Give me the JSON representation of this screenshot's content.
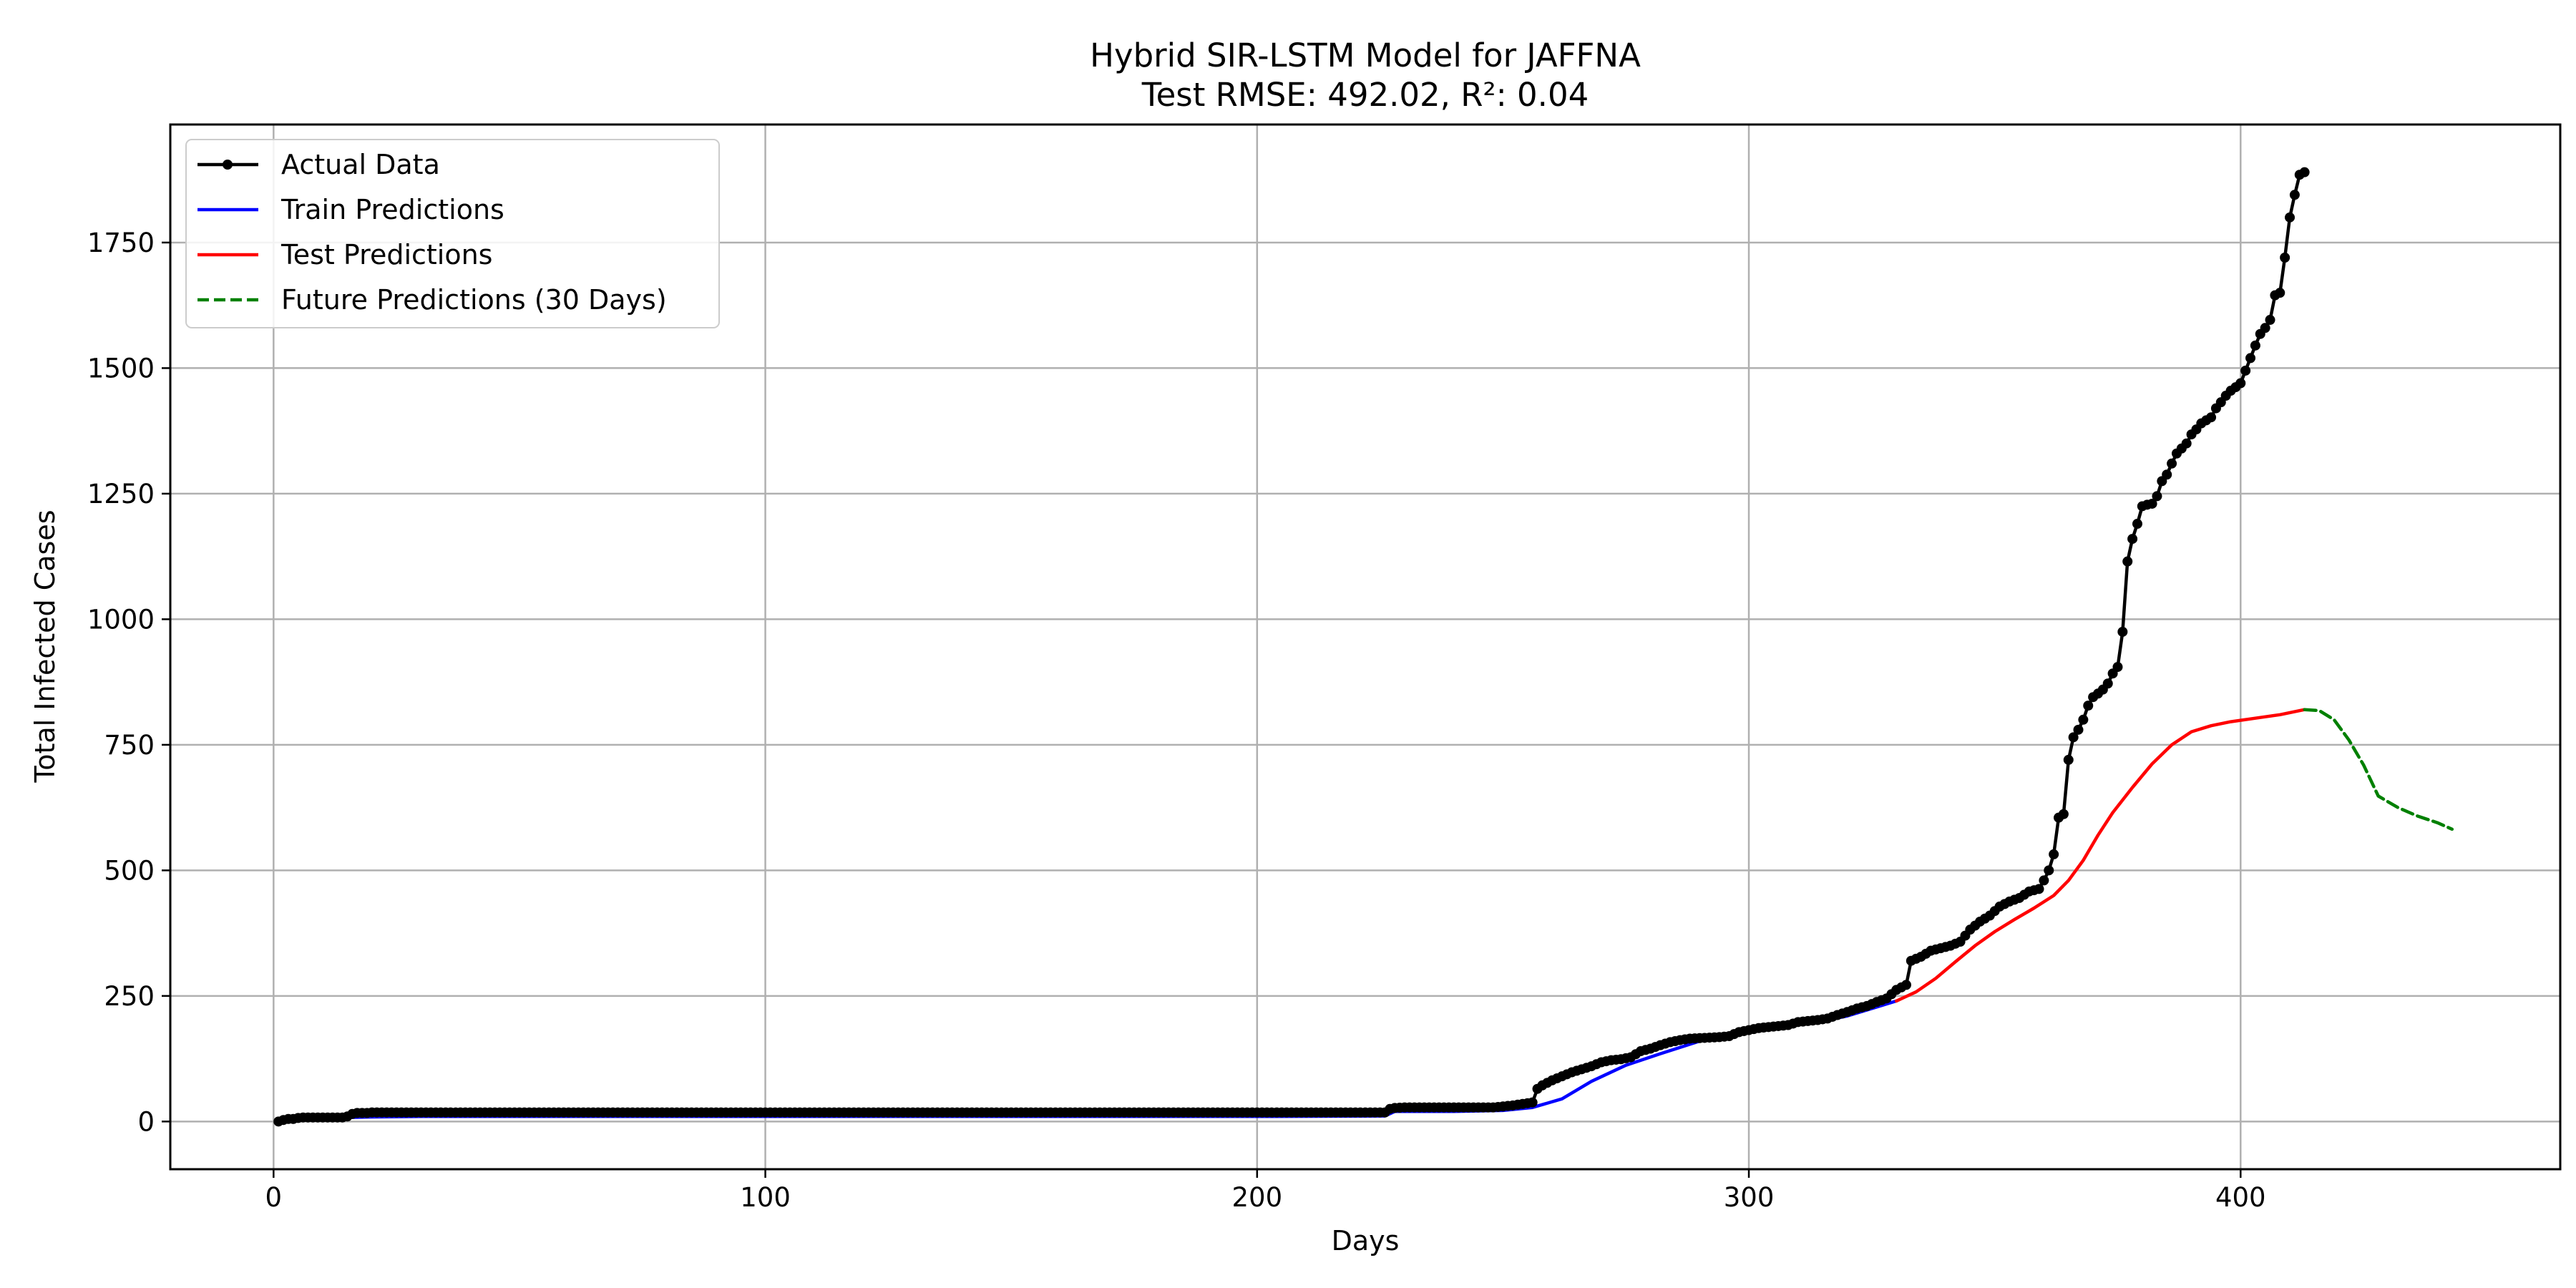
{
  "chart_data": {
    "type": "line",
    "title": "Hybrid SIR-LSTM Model for JAFFNA",
    "subtitle": "Test RMSE: 492.02, R²: 0.04",
    "xlabel": "Days",
    "ylabel": "Total Infected Cases",
    "xlim": [
      -21,
      465
    ],
    "ylim": [
      -95,
      1985
    ],
    "xticks": [
      0,
      100,
      200,
      300,
      400
    ],
    "yticks": [
      0,
      250,
      500,
      750,
      1000,
      1250,
      1500,
      1750
    ],
    "grid": true,
    "legend_position": "top-left",
    "series": [
      {
        "name": "Actual Data",
        "color": "#000000",
        "style": "solid-marker",
        "points": [
          [
            1,
            0
          ],
          [
            2,
            3
          ],
          [
            3,
            5
          ],
          [
            4,
            5
          ],
          [
            5,
            7
          ],
          [
            6,
            8
          ],
          [
            8,
            8
          ],
          [
            10,
            8
          ],
          [
            12,
            8
          ],
          [
            14,
            8
          ],
          [
            15,
            10
          ],
          [
            16,
            15
          ],
          [
            17,
            17
          ],
          [
            18,
            17
          ],
          [
            19,
            17
          ],
          [
            20,
            18
          ],
          [
            40,
            18
          ],
          [
            60,
            18
          ],
          [
            80,
            18
          ],
          [
            100,
            18
          ],
          [
            120,
            18
          ],
          [
            140,
            18
          ],
          [
            160,
            18
          ],
          [
            180,
            18
          ],
          [
            200,
            18
          ],
          [
            215,
            18
          ],
          [
            226,
            18
          ],
          [
            227,
            25
          ],
          [
            228,
            27
          ],
          [
            230,
            28
          ],
          [
            235,
            28
          ],
          [
            240,
            28
          ],
          [
            245,
            28
          ],
          [
            248,
            28
          ],
          [
            250,
            30
          ],
          [
            252,
            32
          ],
          [
            254,
            35
          ],
          [
            256,
            38
          ],
          [
            257,
            65
          ],
          [
            258,
            72
          ],
          [
            260,
            82
          ],
          [
            262,
            90
          ],
          [
            264,
            98
          ],
          [
            266,
            104
          ],
          [
            268,
            110
          ],
          [
            270,
            118
          ],
          [
            272,
            122
          ],
          [
            274,
            124
          ],
          [
            276,
            128
          ],
          [
            278,
            140
          ],
          [
            280,
            145
          ],
          [
            282,
            152
          ],
          [
            284,
            158
          ],
          [
            286,
            162
          ],
          [
            288,
            165
          ],
          [
            290,
            166
          ],
          [
            292,
            167
          ],
          [
            294,
            168
          ],
          [
            296,
            170
          ],
          [
            298,
            178
          ],
          [
            300,
            182
          ],
          [
            302,
            186
          ],
          [
            304,
            188
          ],
          [
            306,
            190
          ],
          [
            308,
            192
          ],
          [
            310,
            198
          ],
          [
            312,
            200
          ],
          [
            314,
            202
          ],
          [
            316,
            205
          ],
          [
            318,
            212
          ],
          [
            320,
            218
          ],
          [
            322,
            225
          ],
          [
            324,
            230
          ],
          [
            326,
            238
          ],
          [
            328,
            245
          ],
          [
            330,
            262
          ],
          [
            332,
            272
          ],
          [
            333,
            320
          ],
          [
            335,
            328
          ],
          [
            337,
            340
          ],
          [
            339,
            345
          ],
          [
            341,
            350
          ],
          [
            343,
            358
          ],
          [
            345,
            382
          ],
          [
            347,
            398
          ],
          [
            349,
            410
          ],
          [
            351,
            428
          ],
          [
            353,
            438
          ],
          [
            355,
            445
          ],
          [
            357,
            458
          ],
          [
            359,
            463
          ],
          [
            360,
            480
          ],
          [
            361,
            500
          ],
          [
            362,
            532
          ],
          [
            363,
            605
          ],
          [
            364,
            612
          ],
          [
            365,
            720
          ],
          [
            366,
            765
          ],
          [
            367,
            780
          ],
          [
            368,
            800
          ],
          [
            369,
            828
          ],
          [
            370,
            845
          ],
          [
            371,
            852
          ],
          [
            372,
            860
          ],
          [
            373,
            872
          ],
          [
            374,
            892
          ],
          [
            375,
            905
          ],
          [
            376,
            975
          ],
          [
            377,
            1115
          ],
          [
            378,
            1160
          ],
          [
            379,
            1190
          ],
          [
            380,
            1225
          ],
          [
            381,
            1228
          ],
          [
            382,
            1230
          ],
          [
            383,
            1245
          ],
          [
            384,
            1275
          ],
          [
            385,
            1288
          ],
          [
            386,
            1310
          ],
          [
            387,
            1330
          ],
          [
            388,
            1340
          ],
          [
            389,
            1350
          ],
          [
            390,
            1368
          ],
          [
            391,
            1378
          ],
          [
            392,
            1390
          ],
          [
            393,
            1396
          ],
          [
            394,
            1402
          ],
          [
            395,
            1420
          ],
          [
            396,
            1432
          ],
          [
            397,
            1445
          ],
          [
            398,
            1455
          ],
          [
            399,
            1462
          ],
          [
            400,
            1470
          ],
          [
            401,
            1495
          ],
          [
            402,
            1520
          ],
          [
            403,
            1545
          ],
          [
            404,
            1568
          ],
          [
            405,
            1580
          ],
          [
            406,
            1596
          ],
          [
            407,
            1645
          ],
          [
            408,
            1650
          ],
          [
            409,
            1720
          ],
          [
            410,
            1800
          ],
          [
            411,
            1845
          ],
          [
            412,
            1885
          ],
          [
            413,
            1890
          ]
        ]
      },
      {
        "name": "Train Predictions",
        "color": "#0000ff",
        "style": "solid",
        "points": [
          [
            15,
            8
          ],
          [
            20,
            9
          ],
          [
            30,
            10
          ],
          [
            60,
            10
          ],
          [
            100,
            10
          ],
          [
            150,
            10
          ],
          [
            200,
            10
          ],
          [
            226,
            11
          ],
          [
            228,
            20
          ],
          [
            240,
            20
          ],
          [
            250,
            22
          ],
          [
            256,
            28
          ],
          [
            262,
            45
          ],
          [
            268,
            80
          ],
          [
            275,
            112
          ],
          [
            282,
            135
          ],
          [
            290,
            160
          ],
          [
            296,
            172
          ],
          [
            302,
            182
          ],
          [
            308,
            190
          ],
          [
            314,
            198
          ],
          [
            320,
            210
          ],
          [
            326,
            228
          ],
          [
            330,
            240
          ]
        ]
      },
      {
        "name": "Test Predictions",
        "color": "#ff0000",
        "style": "solid",
        "points": [
          [
            330,
            240
          ],
          [
            334,
            258
          ],
          [
            338,
            285
          ],
          [
            342,
            318
          ],
          [
            346,
            350
          ],
          [
            350,
            378
          ],
          [
            354,
            402
          ],
          [
            358,
            425
          ],
          [
            362,
            450
          ],
          [
            365,
            480
          ],
          [
            368,
            520
          ],
          [
            371,
            570
          ],
          [
            374,
            615
          ],
          [
            378,
            665
          ],
          [
            382,
            712
          ],
          [
            386,
            750
          ],
          [
            390,
            776
          ],
          [
            394,
            788
          ],
          [
            398,
            796
          ],
          [
            403,
            803
          ],
          [
            408,
            810
          ],
          [
            413,
            820
          ]
        ]
      },
      {
        "name": "Future Predictions (30 Days)",
        "color": "#008000",
        "style": "dashed",
        "points": [
          [
            413,
            820
          ],
          [
            416,
            818
          ],
          [
            419,
            800
          ],
          [
            422,
            760
          ],
          [
            425,
            710
          ],
          [
            428,
            648
          ],
          [
            432,
            625
          ],
          [
            436,
            608
          ],
          [
            440,
            595
          ],
          [
            443,
            582
          ]
        ]
      }
    ]
  }
}
